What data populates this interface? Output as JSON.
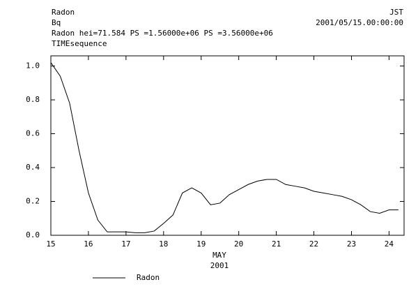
{
  "chart_data": {
    "type": "line",
    "header": [
      "Radon",
      "Bq",
      "Radon hei=71.584 PS =1.56000e+06 PS =3.56000e+06",
      "TIMEsequence"
    ],
    "timezone": "JST",
    "timestamp": "2001/05/15.00:00:00",
    "xlabel": [
      "MAY",
      "2001"
    ],
    "x": [
      15,
      15.25,
      15.5,
      15.75,
      16,
      16.25,
      16.5,
      16.75,
      17,
      17.25,
      17.5,
      17.75,
      18,
      18.25,
      18.5,
      18.75,
      19,
      19.25,
      19.5,
      19.75,
      20,
      20.25,
      20.5,
      20.75,
      21,
      21.25,
      21.5,
      21.75,
      22,
      22.25,
      22.5,
      22.75,
      23,
      23.25,
      23.5,
      23.75,
      24,
      24.25
    ],
    "series": [
      {
        "name": "Radon",
        "color": "#000000",
        "values": [
          1.02,
          0.94,
          0.78,
          0.5,
          0.25,
          0.09,
          0.02,
          0.02,
          0.02,
          0.015,
          0.015,
          0.025,
          0.07,
          0.12,
          0.25,
          0.28,
          0.25,
          0.18,
          0.19,
          0.24,
          0.27,
          0.3,
          0.32,
          0.33,
          0.33,
          0.3,
          0.29,
          0.28,
          0.26,
          0.25,
          0.24,
          0.23,
          0.21,
          0.18,
          0.14,
          0.13,
          0.15,
          0.15
        ]
      }
    ],
    "xlim": [
      15,
      24.4
    ],
    "xticks": [
      15,
      16,
      17,
      18,
      19,
      20,
      21,
      22,
      23,
      24
    ],
    "ylim": [
      0,
      1.06
    ],
    "yticks": [
      {
        "value": 0,
        "label": "0.0"
      },
      {
        "value": 0.2,
        "label": "0.2"
      },
      {
        "value": 0.4,
        "label": "0.4"
      },
      {
        "value": 0.6,
        "label": "0.6"
      },
      {
        "value": 0.8,
        "label": "0.8"
      },
      {
        "value": 1,
        "label": "1.0"
      }
    ]
  }
}
